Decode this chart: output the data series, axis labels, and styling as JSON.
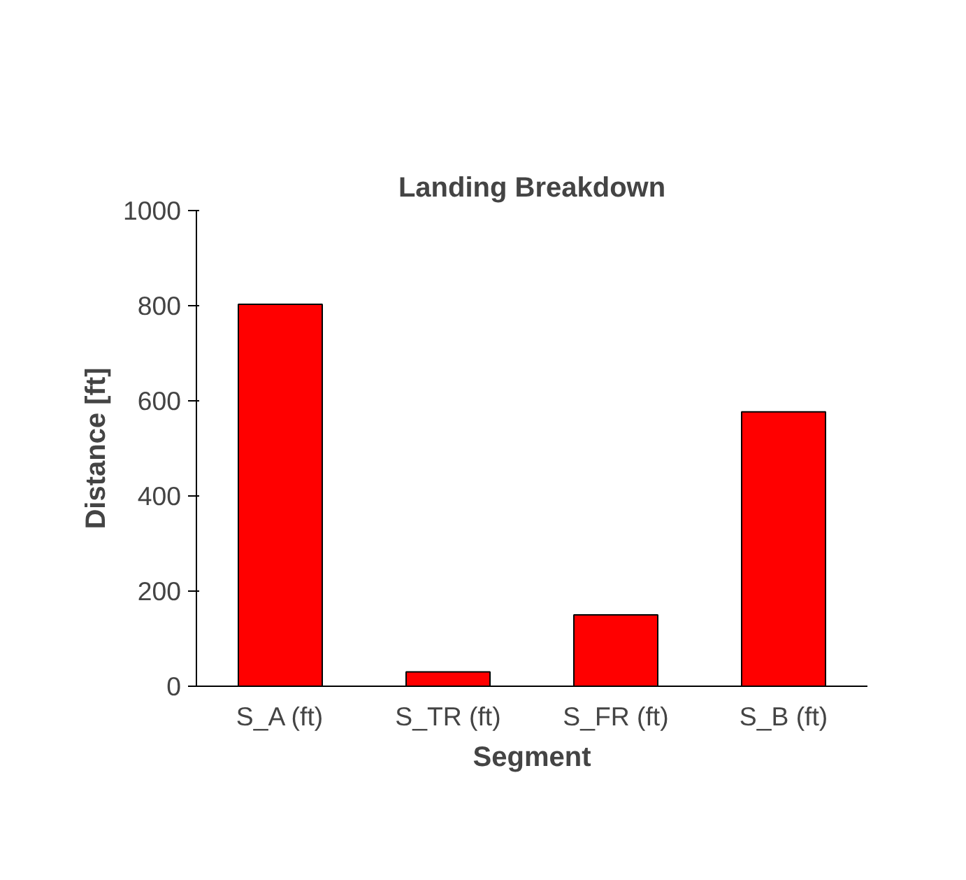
{
  "chart_data": {
    "type": "bar",
    "title": "Landing Breakdown",
    "xlabel": "Segment",
    "ylabel": "Distance [ft]",
    "categories": [
      "S_A (ft)",
      "S_TR (ft)",
      "S_FR (ft)",
      "S_B (ft)"
    ],
    "values": [
      803,
      30,
      150,
      577
    ],
    "color": "#ff0000",
    "ylim": [
      0,
      1000
    ],
    "yticks": [
      0,
      200,
      400,
      600,
      800,
      1000
    ],
    "grid": false
  }
}
